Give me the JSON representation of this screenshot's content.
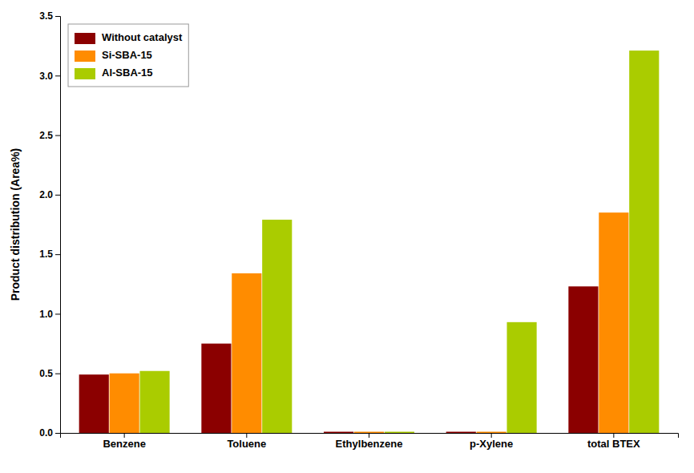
{
  "chart_data": {
    "type": "bar",
    "categories": [
      "Benzene",
      "Toluene",
      "Ethylbenzene",
      "p-Xylene",
      "total BTEX"
    ],
    "series": [
      {
        "name": "Without catalyst",
        "color": "#8B0000",
        "values": [
          0.49,
          0.75,
          0.01,
          0.01,
          1.23
        ]
      },
      {
        "name": "Si-SBA-15",
        "color": "#FF8C00",
        "values": [
          0.5,
          1.34,
          0.01,
          0.01,
          1.85
        ]
      },
      {
        "name": "Al-SBA-15",
        "color": "#AACC00",
        "values": [
          0.52,
          1.79,
          0.01,
          0.93,
          3.21
        ]
      }
    ],
    "ylabel": "Product distribution (Area%)",
    "ylim": [
      0,
      3.5
    ],
    "yticks": [
      {
        "value": 0.0,
        "label": "0.0"
      },
      0.5,
      {
        "value": 1.0,
        "label": "1.0"
      },
      1.5,
      {
        "value": 2.0,
        "label": "2.0"
      },
      2.5,
      {
        "value": 3.0,
        "label": "3.0"
      },
      3.5
    ],
    "grid": false,
    "legend": "upper left"
  }
}
